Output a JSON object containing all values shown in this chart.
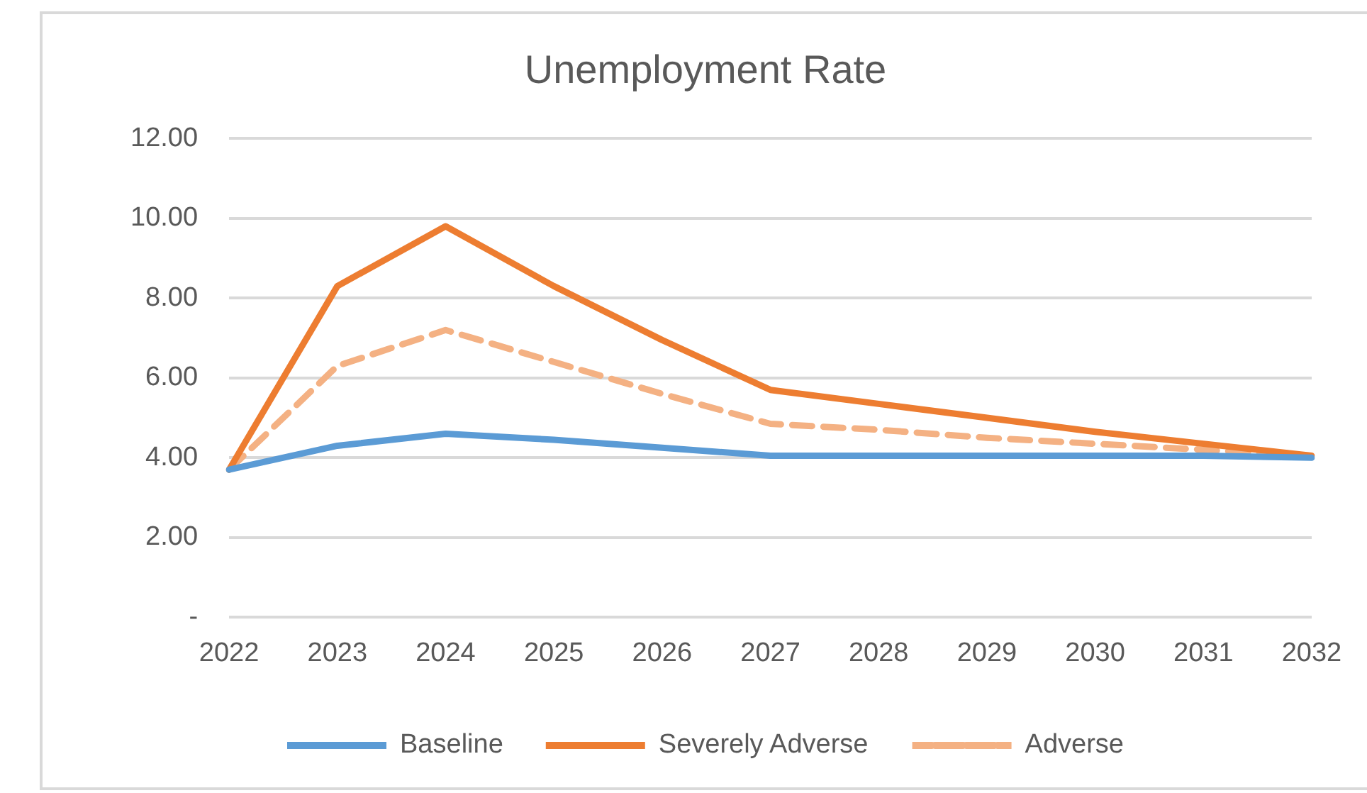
{
  "chart_data": {
    "type": "line",
    "title": "Unemployment Rate",
    "categories": [
      "2022",
      "2023",
      "2024",
      "2025",
      "2026",
      "2027",
      "2028",
      "2029",
      "2030",
      "2031",
      "2032"
    ],
    "series": [
      {
        "name": "Baseline",
        "color": "#5b9bd5",
        "values": [
          3.7,
          4.3,
          4.6,
          4.45,
          4.25,
          4.05,
          4.05,
          4.05,
          4.05,
          4.05,
          4.0
        ]
      },
      {
        "name": "Severely Adverse",
        "color": "#ed7d31",
        "values": [
          3.7,
          8.3,
          9.8,
          8.3,
          6.95,
          5.7,
          5.35,
          5.0,
          4.65,
          4.35,
          4.05
        ]
      },
      {
        "name": "Adverse",
        "color": "#f4b183",
        "line_style": "dashed",
        "values": [
          3.7,
          6.3,
          7.2,
          6.4,
          5.6,
          4.85,
          4.7,
          4.5,
          4.35,
          4.2,
          4.05
        ]
      }
    ],
    "ylim": [
      0,
      12
    ],
    "yticks": [
      {
        "value": 0,
        "label": "-"
      },
      {
        "value": 2,
        "label": "2.00"
      },
      {
        "value": 4,
        "label": "4.00"
      },
      {
        "value": 6,
        "label": "6.00"
      },
      {
        "value": 8,
        "label": "8.00"
      },
      {
        "value": 10,
        "label": "10.00"
      },
      {
        "value": 12,
        "label": "12.00"
      }
    ],
    "grid": "y",
    "legend": "bottom",
    "marker": "none"
  }
}
